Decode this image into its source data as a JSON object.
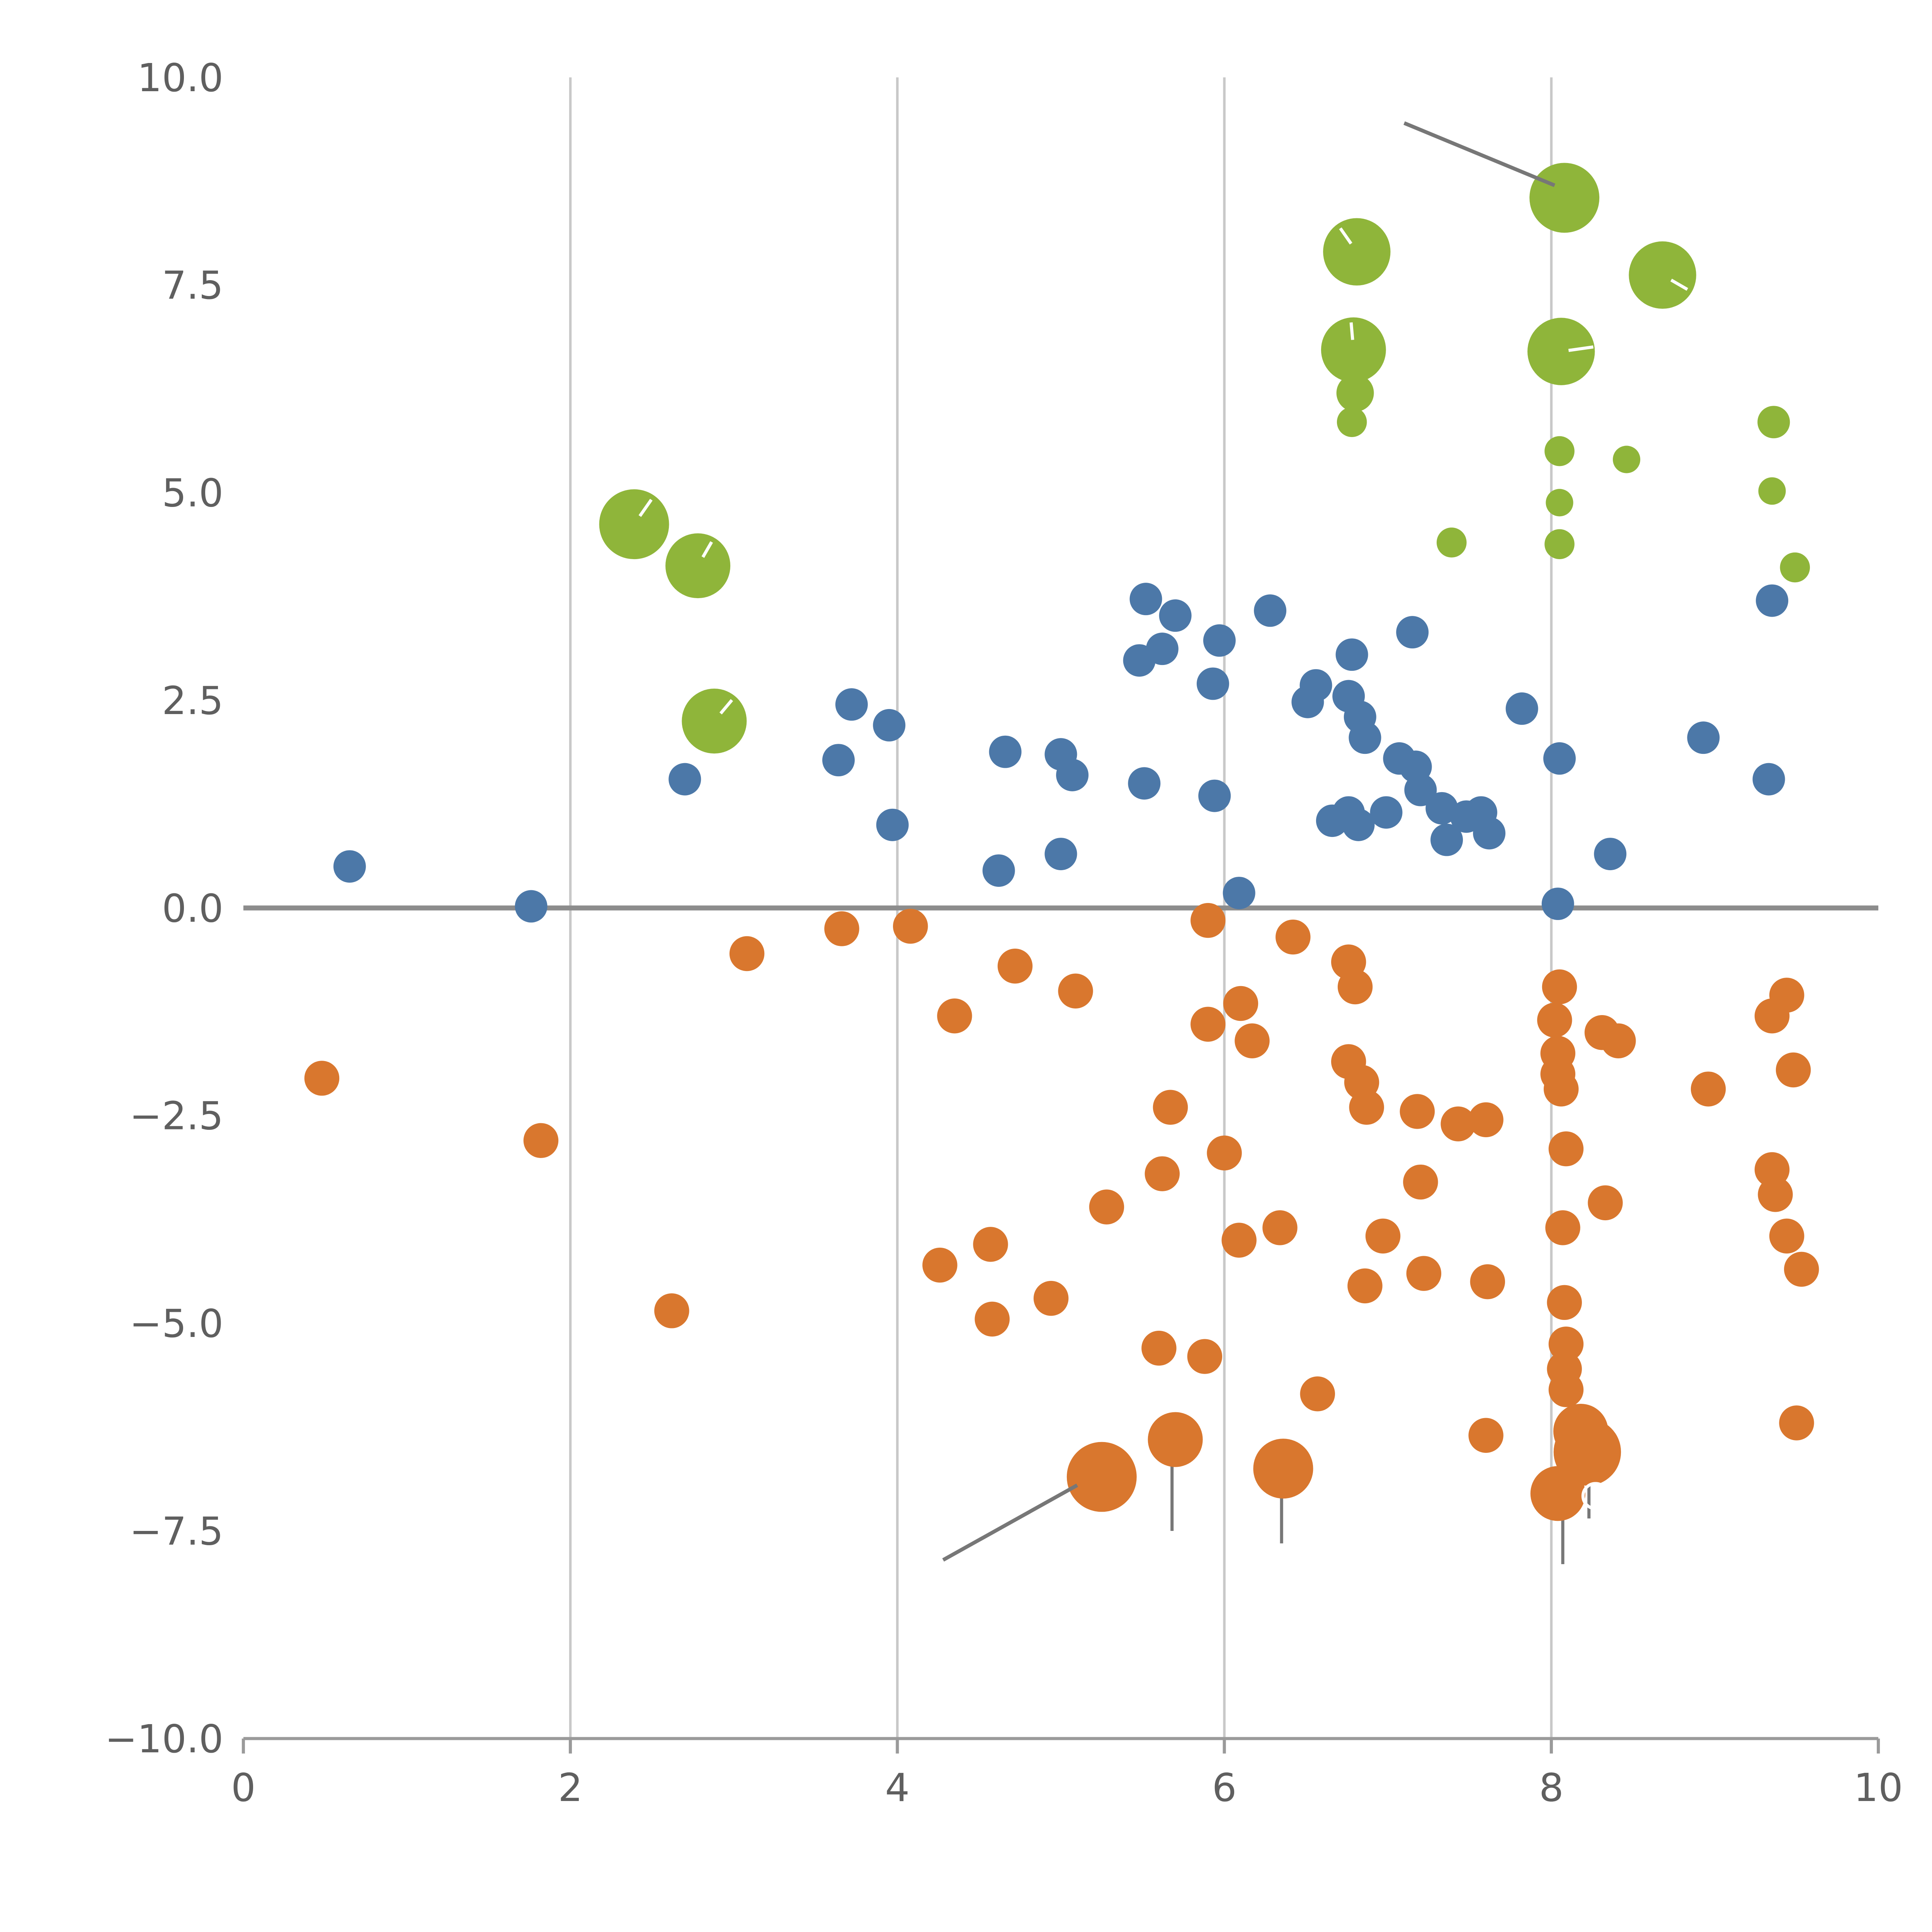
{
  "figure": {
    "background": "#ffffff"
  },
  "chart_data": {
    "type": "scatter",
    "title": "",
    "xlabel": "",
    "ylabel": "",
    "xlim": [
      0,
      10
    ],
    "ylim": [
      -10,
      10
    ],
    "xticks": [
      0,
      2,
      4,
      6,
      8,
      10
    ],
    "xtick_labels": [
      "0",
      "2",
      "4",
      "6",
      "8",
      "10"
    ],
    "yticks": [
      10,
      7.5,
      5,
      2.5,
      0,
      -2.5,
      -5,
      -7.5,
      -10
    ],
    "ytick_labels": [
      "10.0",
      "7.5",
      "5.0",
      "2.5",
      "0.0",
      "−2.5",
      "−5.0",
      "−7.5",
      "−10.0"
    ],
    "grid_x": [
      2,
      4,
      6,
      8
    ],
    "zero_line_y": 0,
    "legend": "none",
    "colors": {
      "grid": "#c8c8c8",
      "axis": "#9a9a9a",
      "zero_line": "#8c8c8c",
      "tick_text": "#5f5f5f",
      "annotation_line": "#777777",
      "white_mark": "#ffffff"
    },
    "series": [
      {
        "name": "blue",
        "color": "#4C78A8",
        "points": [
          [
            0.65,
            0.5,
            13
          ],
          [
            1.76,
            0.02,
            13
          ],
          [
            2.7,
            1.55,
            13
          ],
          [
            3.64,
            1.78,
            13
          ],
          [
            3.72,
            2.45,
            13
          ],
          [
            3.95,
            2.2,
            13
          ],
          [
            3.97,
            1.0,
            13
          ],
          [
            4.66,
            1.88,
            13
          ],
          [
            4.62,
            0.45,
            13
          ],
          [
            5.0,
            1.85,
            13
          ],
          [
            5.07,
            1.6,
            13
          ],
          [
            5.0,
            0.65,
            13
          ],
          [
            5.52,
            3.72,
            13
          ],
          [
            5.7,
            3.52,
            13
          ],
          [
            5.48,
            2.98,
            13
          ],
          [
            5.62,
            3.12,
            13
          ],
          [
            5.51,
            1.5,
            13
          ],
          [
            5.97,
            3.22,
            13
          ],
          [
            5.93,
            2.7,
            13
          ],
          [
            5.94,
            1.35,
            13
          ],
          [
            6.09,
            0.18,
            13
          ],
          [
            6.28,
            3.58,
            13
          ],
          [
            6.51,
            2.48,
            13
          ],
          [
            6.56,
            2.68,
            13
          ],
          [
            6.78,
            3.05,
            13
          ],
          [
            6.76,
            2.55,
            13
          ],
          [
            6.83,
            2.3,
            13
          ],
          [
            6.86,
            2.05,
            13
          ],
          [
            6.66,
            1.05,
            13
          ],
          [
            6.76,
            1.15,
            13
          ],
          [
            6.82,
            1.0,
            13
          ],
          [
            6.99,
            1.15,
            13
          ],
          [
            7.07,
            1.8,
            13
          ],
          [
            7.15,
            3.32,
            13
          ],
          [
            7.17,
            1.7,
            13
          ],
          [
            7.2,
            1.42,
            13
          ],
          [
            7.33,
            1.2,
            13
          ],
          [
            7.36,
            0.82,
            13
          ],
          [
            7.48,
            1.1,
            13
          ],
          [
            7.57,
            1.15,
            13
          ],
          [
            7.62,
            0.9,
            13
          ],
          [
            7.82,
            2.4,
            13
          ],
          [
            8.05,
            1.8,
            13
          ],
          [
            8.04,
            0.05,
            13
          ],
          [
            8.36,
            0.65,
            13
          ],
          [
            8.93,
            2.05,
            13
          ],
          [
            9.35,
            3.7,
            13
          ],
          [
            9.33,
            1.55,
            13
          ]
        ]
      },
      {
        "name": "orange",
        "color": "#D9772E",
        "points": [
          [
            0.48,
            -2.05,
            14
          ],
          [
            1.82,
            -2.8,
            14
          ],
          [
            2.62,
            -4.85,
            14
          ],
          [
            3.08,
            -0.55,
            14
          ],
          [
            3.66,
            -0.25,
            14
          ],
          [
            4.08,
            -0.22,
            14
          ],
          [
            4.26,
            -4.3,
            14
          ],
          [
            4.35,
            -1.3,
            14
          ],
          [
            4.57,
            -4.05,
            14
          ],
          [
            4.58,
            -4.95,
            14
          ],
          [
            4.72,
            -0.7,
            14
          ],
          [
            4.94,
            -4.7,
            14
          ],
          [
            5.09,
            -1.0,
            14
          ],
          [
            5.28,
            -3.6,
            14
          ],
          [
            5.25,
            -6.85,
            28
          ],
          [
            5.62,
            -3.2,
            14
          ],
          [
            5.67,
            -2.4,
            14
          ],
          [
            5.6,
            -5.3,
            14
          ],
          [
            5.7,
            -6.4,
            22
          ],
          [
            5.88,
            -5.4,
            14
          ],
          [
            5.9,
            -0.15,
            14
          ],
          [
            5.9,
            -1.4,
            14
          ],
          [
            6.0,
            -2.95,
            14
          ],
          [
            6.1,
            -1.15,
            14
          ],
          [
            6.09,
            -4.0,
            14
          ],
          [
            6.17,
            -1.6,
            14
          ],
          [
            6.42,
            -0.35,
            14
          ],
          [
            6.34,
            -3.85,
            14
          ],
          [
            6.36,
            -6.75,
            24
          ],
          [
            6.57,
            -5.85,
            14
          ],
          [
            6.76,
            -0.65,
            14
          ],
          [
            6.8,
            -0.95,
            14
          ],
          [
            6.76,
            -1.85,
            14
          ],
          [
            6.84,
            -2.1,
            14
          ],
          [
            6.87,
            -2.4,
            14
          ],
          [
            6.86,
            -4.55,
            14
          ],
          [
            6.97,
            -3.95,
            14
          ],
          [
            7.2,
            -3.3,
            14
          ],
          [
            7.18,
            -2.45,
            14
          ],
          [
            7.22,
            -4.4,
            14
          ],
          [
            7.43,
            -2.6,
            14
          ],
          [
            7.6,
            -2.55,
            14
          ],
          [
            7.61,
            -4.5,
            14
          ],
          [
            7.6,
            -6.35,
            14
          ],
          [
            8.05,
            -0.95,
            14
          ],
          [
            8.02,
            -1.35,
            14
          ],
          [
            8.04,
            -1.75,
            14
          ],
          [
            8.04,
            -2.0,
            14
          ],
          [
            8.06,
            -2.18,
            14
          ],
          [
            8.09,
            -2.9,
            14
          ],
          [
            8.07,
            -3.85,
            14
          ],
          [
            8.08,
            -4.75,
            14
          ],
          [
            8.09,
            -5.25,
            14
          ],
          [
            8.08,
            -5.55,
            14
          ],
          [
            8.09,
            -5.8,
            14
          ],
          [
            8.18,
            -6.3,
            22
          ],
          [
            8.04,
            -7.05,
            22
          ],
          [
            8.22,
            -6.55,
            27
          ],
          [
            8.31,
            -1.5,
            14
          ],
          [
            8.33,
            -3.55,
            14
          ],
          [
            8.41,
            -1.6,
            14
          ],
          [
            8.96,
            -2.18,
            14
          ],
          [
            9.35,
            -1.3,
            14
          ],
          [
            9.44,
            -1.05,
            14
          ],
          [
            9.48,
            -1.95,
            14
          ],
          [
            9.35,
            -3.15,
            14
          ],
          [
            9.37,
            -3.45,
            14
          ],
          [
            9.44,
            -3.95,
            14
          ],
          [
            9.53,
            -4.35,
            14
          ],
          [
            9.5,
            -6.2,
            14
          ]
        ]
      },
      {
        "name": "green",
        "color": "#8FB53A",
        "points": [
          [
            2.39,
            4.62,
            28
          ],
          [
            2.78,
            4.12,
            26
          ],
          [
            2.88,
            2.25,
            26
          ],
          [
            6.81,
            7.9,
            27
          ],
          [
            6.79,
            6.72,
            26
          ],
          [
            6.8,
            6.2,
            15
          ],
          [
            6.78,
            5.85,
            12
          ],
          [
            7.39,
            4.4,
            12
          ],
          [
            8.08,
            8.55,
            28
          ],
          [
            8.06,
            6.7,
            27
          ],
          [
            8.05,
            5.5,
            12
          ],
          [
            8.05,
            4.88,
            11
          ],
          [
            8.05,
            4.38,
            12
          ],
          [
            8.46,
            5.4,
            11
          ],
          [
            8.68,
            7.62,
            27
          ],
          [
            9.36,
            5.85,
            13
          ],
          [
            9.35,
            5.02,
            11
          ],
          [
            9.49,
            4.1,
            12
          ]
        ]
      }
    ],
    "annotations": {
      "leader_lines": [
        {
          "x1": 7.1,
          "y1": 9.45,
          "x2": 8.02,
          "y2": 8.7
        },
        {
          "x1": 4.28,
          "y1": -7.85,
          "x2": 5.1,
          "y2": -6.95
        }
      ],
      "whiskers": [
        {
          "x": 5.68,
          "y1": -6.55,
          "y2": -7.5
        },
        {
          "x": 6.35,
          "y1": -6.9,
          "y2": -7.65
        },
        {
          "x": 8.07,
          "y1": -6.7,
          "y2": -7.9
        },
        {
          "x": 8.23,
          "y1": -6.55,
          "y2": -7.35
        }
      ],
      "white_ticks": [
        {
          "x": 2.39,
          "y": 4.62,
          "angle": 55,
          "inner": 8,
          "outer": 24
        },
        {
          "x": 2.78,
          "y": 4.12,
          "angle": 60,
          "inner": 8,
          "outer": 22
        },
        {
          "x": 2.88,
          "y": 2.25,
          "angle": 50,
          "inner": 8,
          "outer": 22
        },
        {
          "x": 6.81,
          "y": 7.9,
          "angle": 125,
          "inner": 8,
          "outer": 23
        },
        {
          "x": 6.79,
          "y": 6.72,
          "angle": 95,
          "inner": 8,
          "outer": 22
        },
        {
          "x": 8.06,
          "y": 6.7,
          "angle": 8,
          "inner": 6,
          "outer": 26
        },
        {
          "x": 8.68,
          "y": 7.62,
          "angle": -30,
          "inner": 8,
          "outer": 23
        }
      ],
      "white_rings": [
        {
          "x": 8.27,
          "y": -7.08,
          "r": 10
        }
      ]
    }
  }
}
